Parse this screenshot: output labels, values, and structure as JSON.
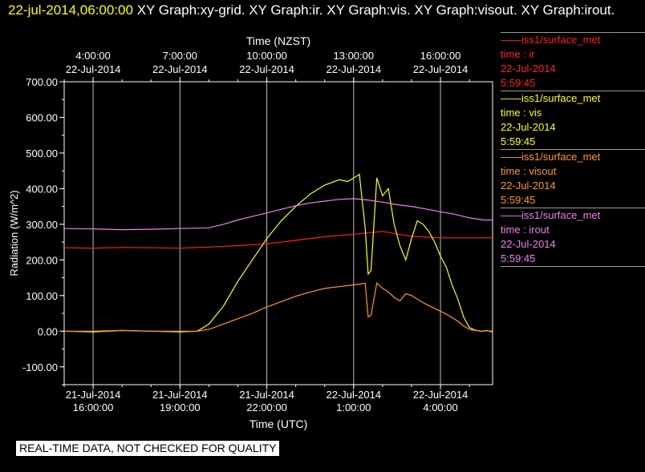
{
  "header": {
    "datetime": "22-jul-2014,06:00:00",
    "titles": "XY Graph:xy-grid.  XY Graph:ir.  XY Graph:vis.  XY Graph:visout.  XY Graph:irout."
  },
  "legend": [
    {
      "source": "iss1/surface_met",
      "field": "time : ir",
      "date": "22-Jul-2014",
      "time": "5:59:45",
      "color": "#ff2020"
    },
    {
      "source": "iss1/surface_met",
      "field": "time : vis",
      "date": "22-Jul-2014",
      "time": "5:59:45",
      "color": "#ffff20"
    },
    {
      "source": "iss1/surface_met",
      "field": "time : visout",
      "date": "22-Jul-2014",
      "time": "5:59:45",
      "color": "#ff9a20"
    },
    {
      "source": "iss1/surface_met",
      "field": "time : irout",
      "date": "22-Jul-2014",
      "time": "5:59:45",
      "color": "#ee82ee"
    }
  ],
  "footer": {
    "text": "REAL-TIME DATA, NOT CHECKED FOR QUALITY"
  },
  "chart_data": {
    "type": "line",
    "title": "",
    "xlabel": "Time (UTC)",
    "x2label": "Time (NZST)",
    "ylabel": "Radiation  (W/m^2)",
    "xlim": [
      15.0,
      28.2
    ],
    "ylim": [
      -150,
      700
    ],
    "grid": "vertical",
    "y_ticks": [
      -100,
      0,
      100,
      200,
      300,
      400,
      500,
      600,
      700
    ],
    "y_tick_labels": [
      "-100.00",
      "0.00",
      "100.00",
      "200.00",
      "300.00",
      "400.00",
      "500.00",
      "600.00",
      "700.00"
    ],
    "x_ticks": [
      {
        "x": 16,
        "date": "21-Jul-2014",
        "time": "16:00:00"
      },
      {
        "x": 19,
        "date": "21-Jul-2014",
        "time": "19:00:00"
      },
      {
        "x": 22,
        "date": "21-Jul-2014",
        "time": "22:00:00"
      },
      {
        "x": 25,
        "date": "22-Jul-2014",
        "time": "1:00:00"
      },
      {
        "x": 28,
        "date": "22-Jul-2014",
        "time": "4:00:00"
      }
    ],
    "x2_ticks": [
      {
        "x": 16,
        "time": "4:00:00",
        "date": "22-Jul-2014"
      },
      {
        "x": 19,
        "time": "7:00:00",
        "date": "22-Jul-2014"
      },
      {
        "x": 22,
        "time": "10:00:00",
        "date": "22-Jul-2014"
      },
      {
        "x": 25,
        "time": "13:00:00",
        "date": "22-Jul-2014"
      },
      {
        "x": 28,
        "time": "16:00:00",
        "date": "22-Jul-2014"
      }
    ],
    "x_unit_note": "x values are hours since 21-Jul-2014 00:00 UTC",
    "series": [
      {
        "name": "ir",
        "color": "#ff2020",
        "x": [
          15.0,
          16,
          17,
          18,
          19,
          20,
          21,
          22,
          23,
          24,
          25,
          26,
          27,
          28,
          29,
          29.8
        ],
        "y": [
          234,
          233,
          235,
          234,
          233,
          236,
          240,
          245,
          255,
          265,
          272,
          280,
          266,
          262,
          262,
          262
        ]
      },
      {
        "name": "vis",
        "color": "#ffff20",
        "x": [
          15.0,
          16,
          17,
          18,
          19,
          19.6,
          20,
          20.5,
          21,
          21.5,
          22,
          22.5,
          23,
          23.5,
          24,
          24.5,
          24.8,
          25.0,
          25.2,
          25.4,
          25.5,
          25.6,
          25.8,
          26.0,
          26.2,
          26.4,
          26.6,
          26.8,
          27.0,
          27.2,
          27.4,
          27.6,
          27.8,
          28.0,
          28.2,
          28.4,
          28.6,
          28.8,
          29.0,
          29.2,
          29.4,
          29.6,
          29.8
        ],
        "y": [
          0,
          -2,
          2,
          0,
          -2,
          0,
          20,
          70,
          140,
          200,
          260,
          310,
          350,
          385,
          410,
          425,
          420,
          430,
          440,
          290,
          160,
          170,
          430,
          380,
          400,
          300,
          240,
          200,
          260,
          310,
          300,
          280,
          250,
          210,
          180,
          130,
          90,
          40,
          10,
          3,
          0,
          2,
          -2
        ]
      },
      {
        "name": "visout",
        "color": "#ff9a20",
        "x": [
          15.0,
          16,
          17,
          18,
          19,
          19.6,
          20,
          20.5,
          21,
          21.5,
          22,
          22.5,
          23,
          23.5,
          24,
          24.5,
          25.0,
          25.2,
          25.4,
          25.5,
          25.6,
          25.8,
          26.0,
          26.2,
          26.4,
          26.6,
          26.8,
          27.0,
          27.2,
          27.4,
          27.6,
          27.8,
          28.0,
          28.2,
          28.4,
          28.6,
          28.8,
          29.0,
          29.2,
          29.4,
          29.6,
          29.8
        ],
        "y": [
          0,
          0,
          2,
          0,
          0,
          0,
          5,
          20,
          35,
          50,
          68,
          83,
          98,
          110,
          120,
          125,
          130,
          132,
          135,
          40,
          45,
          135,
          120,
          110,
          95,
          85,
          105,
          100,
          90,
          80,
          72,
          64,
          56,
          48,
          38,
          28,
          15,
          5,
          2,
          0,
          1,
          0
        ]
      },
      {
        "name": "irout",
        "color": "#ee82ee",
        "x": [
          15.0,
          16,
          17,
          18,
          19,
          20,
          20.5,
          21,
          21.5,
          22,
          22.5,
          23,
          23.5,
          24,
          24.5,
          25,
          25.5,
          26,
          26.5,
          27,
          27.5,
          28,
          28.5,
          29,
          29.5,
          29.8
        ],
        "y": [
          288,
          287,
          285,
          286,
          288,
          290,
          300,
          312,
          322,
          332,
          342,
          352,
          360,
          365,
          370,
          372,
          368,
          362,
          355,
          350,
          343,
          335,
          328,
          318,
          312,
          312
        ]
      }
    ]
  }
}
